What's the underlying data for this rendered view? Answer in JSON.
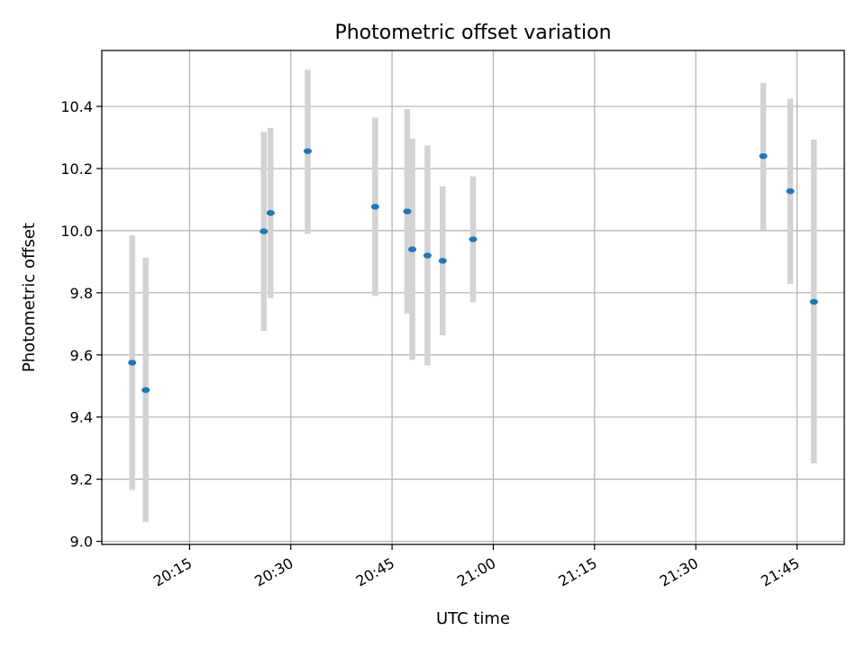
{
  "chart_data": {
    "type": "scatter",
    "title": "Photometric offset variation",
    "xlabel": "UTC time",
    "ylabel": "Photometric offset",
    "x_ticks": [
      "20:15",
      "20:30",
      "20:45",
      "21:00",
      "21:15",
      "21:30",
      "21:45"
    ],
    "y_ticks": [
      "9.0",
      "9.2",
      "9.4",
      "9.6",
      "9.8",
      "10.0",
      "10.2",
      "10.4"
    ],
    "xlim": [
      "20:02",
      "21:52"
    ],
    "ylim": [
      8.99,
      10.58
    ],
    "grid": true,
    "marker_color": "#1f77b4",
    "errorbar_color": "#d3d3d3",
    "series": [
      {
        "points": [
          {
            "x": "20:06:30",
            "y": 9.575,
            "ylow": 9.165,
            "yhigh": 9.985
          },
          {
            "x": "20:08:30",
            "y": 9.487,
            "ylow": 9.062,
            "yhigh": 9.913
          },
          {
            "x": "20:26:00",
            "y": 9.998,
            "ylow": 9.677,
            "yhigh": 10.318
          },
          {
            "x": "20:27:00",
            "y": 10.057,
            "ylow": 9.783,
            "yhigh": 10.331
          },
          {
            "x": "20:32:30",
            "y": 10.256,
            "ylow": 9.99,
            "yhigh": 10.518
          },
          {
            "x": "20:42:30",
            "y": 10.077,
            "ylow": 9.79,
            "yhigh": 10.364
          },
          {
            "x": "20:47:15",
            "y": 10.062,
            "ylow": 9.733,
            "yhigh": 10.391
          },
          {
            "x": "20:48:00",
            "y": 9.94,
            "ylow": 9.584,
            "yhigh": 10.296
          },
          {
            "x": "20:50:15",
            "y": 9.92,
            "ylow": 9.566,
            "yhigh": 10.274
          },
          {
            "x": "20:52:30",
            "y": 9.903,
            "ylow": 9.663,
            "yhigh": 10.143
          },
          {
            "x": "20:57:00",
            "y": 9.972,
            "ylow": 9.769,
            "yhigh": 10.175
          },
          {
            "x": "21:40:00",
            "y": 10.24,
            "ylow": 10.003,
            "yhigh": 10.476
          },
          {
            "x": "21:44:00",
            "y": 10.127,
            "ylow": 9.828,
            "yhigh": 10.425
          },
          {
            "x": "21:47:30",
            "y": 9.771,
            "ylow": 9.251,
            "yhigh": 10.293
          }
        ]
      }
    ]
  }
}
